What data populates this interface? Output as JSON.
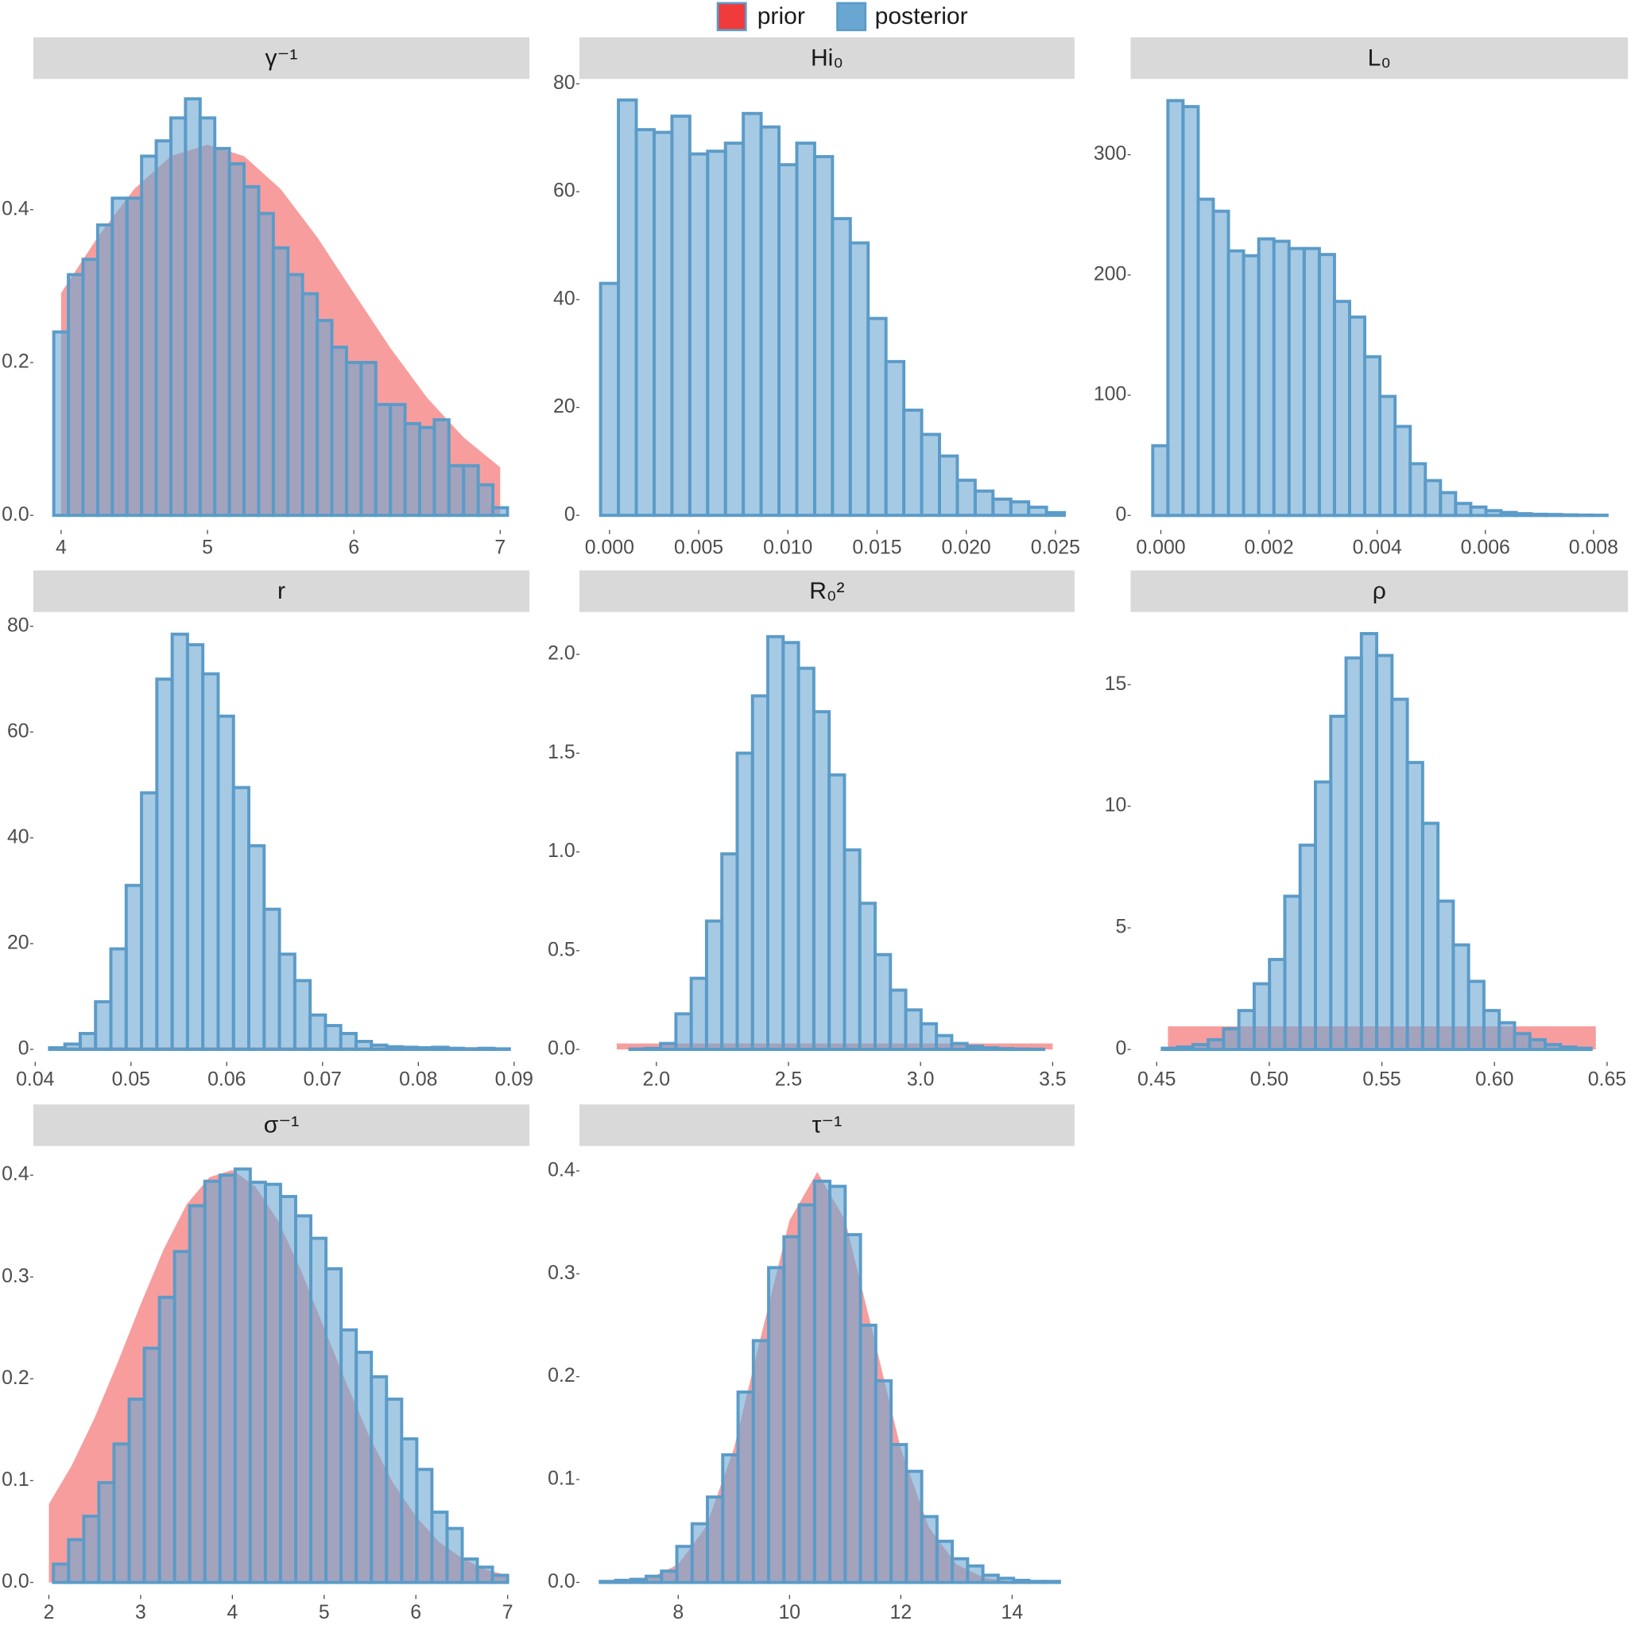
{
  "legend": [
    {
      "name": "prior",
      "color": "#ef3b3b"
    },
    {
      "name": "posterior",
      "color": "#6aa6d2"
    }
  ],
  "legend_position": "top",
  "chart_data": [
    {
      "type": "histogram",
      "title": "γ⁻¹",
      "bins": [
        3.95,
        4.05,
        4.15,
        4.25,
        4.35,
        4.45,
        4.55,
        4.65,
        4.75,
        4.85,
        4.95,
        5.05,
        5.15,
        5.25,
        5.35,
        5.45,
        5.55,
        5.65,
        5.75,
        5.85,
        5.95,
        6.05,
        6.15,
        6.25,
        6.35,
        6.45,
        6.55,
        6.65,
        6.75,
        6.85,
        6.95,
        7.05
      ],
      "values": [
        0.24,
        0.315,
        0.335,
        0.38,
        0.415,
        0.415,
        0.47,
        0.49,
        0.52,
        0.545,
        0.52,
        0.48,
        0.46,
        0.43,
        0.395,
        0.35,
        0.315,
        0.29,
        0.255,
        0.22,
        0.2,
        0.2,
        0.145,
        0.145,
        0.12,
        0.115,
        0.125,
        0.065,
        0.065,
        0.04,
        0.01
      ],
      "prior": {
        "x": [
          4.0,
          4.25,
          4.5,
          4.75,
          5.0,
          5.25,
          5.5,
          5.75,
          6.0,
          6.25,
          6.5,
          6.75,
          7.0
        ],
        "values": [
          0.291,
          0.364,
          0.427,
          0.47,
          0.485,
          0.47,
          0.427,
          0.364,
          0.291,
          0.219,
          0.154,
          0.102,
          0.063
        ]
      },
      "xlim": [
        3.81,
        7.2
      ],
      "ylim": [
        -0.019,
        0.571
      ],
      "xticks": [
        4,
        5,
        6,
        7
      ],
      "yticks": [
        {
          "value": 0,
          "label": "0.0"
        },
        0.2,
        0.4
      ]
    },
    {
      "type": "histogram",
      "title": "Hi₀",
      "bins": [
        -0.0005,
        0.0005,
        0.0015,
        0.0025,
        0.0035,
        0.0045,
        0.0055,
        0.0065,
        0.0075,
        0.0085,
        0.0095,
        0.0105,
        0.0115,
        0.0125,
        0.0135,
        0.0145,
        0.0155,
        0.0165,
        0.0175,
        0.0185,
        0.0195,
        0.0205,
        0.0215,
        0.0225,
        0.0235,
        0.0245,
        0.0255
      ],
      "values": [
        43,
        77,
        71.5,
        71,
        74,
        67,
        67.5,
        69,
        74.5,
        72,
        65,
        69,
        66.5,
        55,
        50.5,
        36.5,
        28.5,
        19.5,
        15,
        11,
        6.5,
        4.5,
        3,
        2.5,
        1.5,
        0.5
      ],
      "xlim": [
        -0.00169,
        0.02607
      ],
      "ylim": [
        -2.7,
        80.9
      ],
      "xticks": [
        {
          "value": 0,
          "label": "0.000"
        },
        0.005,
        {
          "value": 0.01,
          "label": "0.010"
        },
        0.015,
        {
          "value": 0.02,
          "label": "0.020"
        },
        0.025
      ],
      "yticks": [
        0,
        20,
        40,
        60,
        80
      ]
    },
    {
      "type": "histogram",
      "title": "L₀",
      "bins": [
        -0.00015,
        0.00013,
        0.00041,
        0.00069,
        0.00097,
        0.00125,
        0.00153,
        0.00181,
        0.00209,
        0.00237,
        0.00265,
        0.00293,
        0.00321,
        0.00349,
        0.00377,
        0.00405,
        0.00433,
        0.00461,
        0.00489,
        0.00517,
        0.00545,
        0.00573,
        0.00601,
        0.00629,
        0.00657,
        0.00685,
        0.00713,
        0.00741,
        0.00769,
        0.00797,
        0.00825
      ],
      "values": [
        58,
        345,
        340,
        263,
        253,
        220,
        216,
        230,
        228,
        222,
        222,
        217,
        178,
        165,
        132,
        99,
        74,
        43,
        29,
        19,
        10,
        7,
        4,
        2.5,
        1.5,
        1,
        0.8,
        0.5,
        0.3,
        0.2
      ],
      "xlim": [
        -0.000558,
        0.008635
      ],
      "ylim": [
        -12,
        363
      ],
      "xticks": [
        {
          "value": 0,
          "label": "0.000"
        },
        0.002,
        0.004,
        0.006,
        0.008
      ],
      "yticks": [
        0,
        100,
        200,
        300
      ]
    },
    {
      "type": "histogram",
      "title": "r",
      "bins": [
        0.0415,
        0.0431,
        0.0447,
        0.0463,
        0.0479,
        0.0495,
        0.0511,
        0.0527,
        0.0543,
        0.0559,
        0.0575,
        0.0591,
        0.0607,
        0.0623,
        0.0639,
        0.0655,
        0.0671,
        0.0687,
        0.0703,
        0.0719,
        0.0735,
        0.0751,
        0.0767,
        0.0783,
        0.0799,
        0.0815,
        0.0831,
        0.0847,
        0.0863,
        0.0879,
        0.0895
      ],
      "values": [
        0.3,
        1,
        3,
        9,
        19,
        31,
        48.5,
        70,
        78.5,
        76.5,
        71,
        63,
        49.5,
        38.5,
        26.5,
        18,
        13,
        6.5,
        4.5,
        3,
        1.5,
        0.8,
        0.5,
        0.4,
        0.3,
        0.4,
        0.2,
        0.1,
        0.2,
        0.1
      ],
      "prior": {
        "x": [
          0.042,
          0.088
        ],
        "values": [
          0.4,
          0.4
        ]
      },
      "xlim": [
        0.0398,
        0.0916
      ],
      "ylim": [
        -2.36,
        82.7
      ],
      "xticks": [
        0.04,
        0.05,
        0.06,
        0.07,
        0.08,
        0.09
      ],
      "yticks": [
        0,
        20,
        40,
        60,
        80
      ]
    },
    {
      "type": "histogram",
      "title": "R₀²",
      "bins": [
        1.9,
        1.958,
        2.016,
        2.074,
        2.132,
        2.19,
        2.248,
        2.306,
        2.364,
        2.422,
        2.48,
        2.538,
        2.596,
        2.654,
        2.712,
        2.77,
        2.828,
        2.886,
        2.944,
        3.002,
        3.06,
        3.118,
        3.176,
        3.234,
        3.292,
        3.35,
        3.408,
        3.466
      ],
      "values": [
        0.002,
        0.005,
        0.03,
        0.18,
        0.36,
        0.65,
        0.99,
        1.5,
        1.79,
        2.09,
        2.06,
        1.93,
        1.71,
        1.39,
        1.01,
        0.74,
        0.48,
        0.3,
        0.2,
        0.13,
        0.07,
        0.03,
        0.016,
        0.008,
        0.004,
        0.002,
        0.001
      ],
      "prior": {
        "x": [
          1.85,
          3.5
        ],
        "values": [
          0.03,
          0.03
        ]
      },
      "xlim": [
        1.7087,
        3.5827
      ],
      "ylim": [
        -0.063,
        2.215
      ],
      "xticks": [
        {
          "value": 2,
          "label": "2.0"
        },
        2.5,
        {
          "value": 3,
          "label": "3.0"
        },
        3.5
      ],
      "yticks": [
        {
          "value": 0,
          "label": "0.0"
        },
        0.5,
        {
          "value": 1,
          "label": "1.0"
        },
        1.5,
        {
          "value": 2,
          "label": "2.0"
        }
      ]
    },
    {
      "type": "histogram",
      "title": "ρ",
      "bins": [
        0.4525,
        0.4593,
        0.4661,
        0.4729,
        0.4797,
        0.4865,
        0.4933,
        0.5001,
        0.5069,
        0.5137,
        0.5205,
        0.5273,
        0.5341,
        0.5409,
        0.5477,
        0.5545,
        0.5613,
        0.5681,
        0.5749,
        0.5817,
        0.5885,
        0.5953,
        0.6021,
        0.6089,
        0.6157,
        0.6225,
        0.6293,
        0.6361,
        0.6429
      ],
      "values": [
        0.05,
        0.1,
        0.2,
        0.4,
        0.85,
        1.6,
        2.7,
        3.7,
        6.3,
        8.4,
        11,
        13.7,
        16.1,
        17.1,
        16.2,
        14.4,
        11.8,
        9.3,
        6.1,
        4.3,
        2.8,
        1.6,
        1.1,
        0.65,
        0.4,
        0.2,
        0.1,
        0.05
      ],
      "prior": {
        "x": [
          0.455,
          0.645
        ],
        "values": [
          0.95,
          0.95
        ]
      },
      "xlim": [
        0.43846,
        0.65923
      ],
      "ylim": [
        -0.51,
        17.99
      ],
      "xticks": [
        0.45,
        {
          "value": 0.5,
          "label": "0.50"
        },
        0.55,
        {
          "value": 0.6,
          "label": "0.60"
        },
        0.65
      ],
      "yticks": [
        0,
        5,
        10,
        15
      ]
    },
    {
      "type": "histogram",
      "title": "σ⁻¹",
      "bins": [
        2.05,
        2.215,
        2.38,
        2.545,
        2.71,
        2.875,
        3.04,
        3.205,
        3.37,
        3.535,
        3.7,
        3.865,
        4.03,
        4.195,
        4.36,
        4.525,
        4.69,
        4.855,
        5.02,
        5.185,
        5.35,
        5.515,
        5.68,
        5.845,
        6.01,
        6.175,
        6.34,
        6.505,
        6.67,
        6.835,
        7.0
      ],
      "values": [
        0.018,
        0.042,
        0.065,
        0.098,
        0.136,
        0.18,
        0.23,
        0.28,
        0.325,
        0.37,
        0.394,
        0.4,
        0.406,
        0.393,
        0.391,
        0.379,
        0.36,
        0.338,
        0.308,
        0.248,
        0.226,
        0.202,
        0.18,
        0.141,
        0.111,
        0.069,
        0.053,
        0.023,
        0.015,
        0.007
      ],
      "prior": {
        "x": [
          2.0,
          2.25,
          2.5,
          2.75,
          3.0,
          3.25,
          3.5,
          3.75,
          4.0,
          4.25,
          4.5,
          4.75,
          5.0,
          5.25,
          5.5,
          5.75,
          6.0,
          6.25,
          6.5,
          6.75,
          7.0
        ],
        "values": [
          0.077,
          0.115,
          0.162,
          0.216,
          0.273,
          0.327,
          0.371,
          0.398,
          0.405,
          0.389,
          0.355,
          0.306,
          0.25,
          0.194,
          0.142,
          0.098,
          0.065,
          0.04,
          0.024,
          0.013,
          0.007
        ]
      },
      "xlim": [
        1.83,
        7.238
      ],
      "ylim": [
        -0.0122,
        0.4286
      ],
      "xticks": [
        2,
        3,
        4,
        5,
        6,
        7
      ],
      "yticks": [
        {
          "value": 0,
          "label": "0.0"
        },
        0.1,
        0.2,
        0.3,
        0.4
      ]
    },
    {
      "type": "histogram",
      "title": "τ⁻¹",
      "bins": [
        6.6,
        6.875,
        7.15,
        7.425,
        7.7,
        7.975,
        8.25,
        8.525,
        8.8,
        9.075,
        9.35,
        9.625,
        9.9,
        10.175,
        10.45,
        10.725,
        11.0,
        11.275,
        11.55,
        11.825,
        12.1,
        12.375,
        12.65,
        12.925,
        13.2,
        13.475,
        13.75,
        14.025,
        14.3,
        14.575,
        14.85
      ],
      "values": [
        0.001,
        0.002,
        0.003,
        0.006,
        0.011,
        0.035,
        0.057,
        0.083,
        0.124,
        0.185,
        0.235,
        0.306,
        0.336,
        0.367,
        0.39,
        0.385,
        0.338,
        0.25,
        0.196,
        0.134,
        0.108,
        0.064,
        0.04,
        0.023,
        0.016,
        0.007,
        0.004,
        0.002,
        0.001,
        0.001
      ],
      "prior": {
        "x": [
          7,
          7.5,
          8,
          8.5,
          9,
          9.5,
          10,
          10.5,
          11,
          11.5,
          12,
          12.5,
          13,
          13.5,
          14
        ],
        "values": [
          0.0009,
          0.0044,
          0.0175,
          0.054,
          0.13,
          0.242,
          0.352,
          0.399,
          0.352,
          0.242,
          0.13,
          0.054,
          0.0175,
          0.0044,
          0.0009
        ]
      },
      "xlim": [
        6.224,
        15.121
      ],
      "ylim": [
        -0.0121,
        0.4242
      ],
      "xticks": [
        8,
        10,
        12,
        14
      ],
      "yticks": [
        {
          "value": 0,
          "label": "0.0"
        },
        0.1,
        0.2,
        0.3,
        0.4
      ]
    }
  ]
}
